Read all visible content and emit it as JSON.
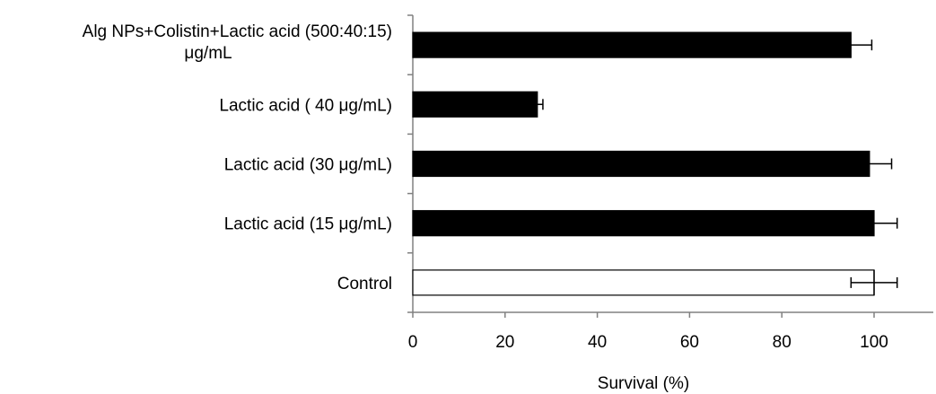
{
  "chart_data": {
    "type": "bar",
    "orientation": "horizontal",
    "categories": [
      "Alg NPs+Colistin+Lactic acid (500:40:15) μg/mL",
      "Lactic acid ( 40 μg/mL)",
      "Lactic acid (30 μg/mL)",
      "Lactic acid (15 μg/mL)",
      "Control"
    ],
    "category_lines": [
      [
        "Alg NPs+Colistin+Lactic acid (500:40:15)",
        "μg/mL"
      ],
      [
        "Lactic acid ( 40 μg/mL)"
      ],
      [
        "Lactic acid (30 μg/mL)"
      ],
      [
        "Lactic acid (15 μg/mL)"
      ],
      [
        "Control"
      ]
    ],
    "values": [
      95,
      27,
      99,
      100,
      100
    ],
    "errors": [
      4.5,
      1.2,
      4.8,
      5,
      5
    ],
    "error_style": [
      "plus",
      "plus",
      "plus",
      "plus",
      "both"
    ],
    "bar_colors": [
      "#000000",
      "#000000",
      "#000000",
      "#000000",
      "#ffffff"
    ],
    "xlabel": "Survival (%)",
    "xlim": [
      0,
      113
    ],
    "xticks": [
      0,
      20,
      40,
      60,
      80,
      100
    ],
    "grid": false
  }
}
